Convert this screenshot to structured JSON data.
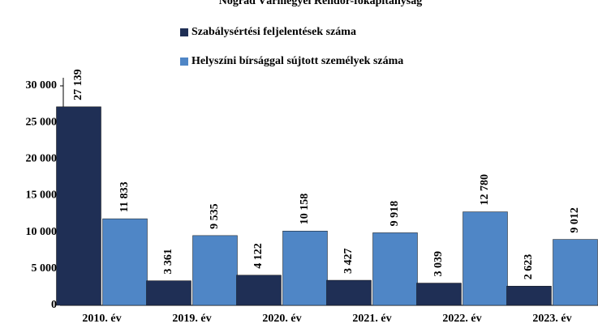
{
  "chart_data": {
    "type": "bar",
    "title": "Nógrád Vármegyei Rendőr-főkapitányság",
    "categories": [
      "2010. év",
      "2019. év",
      "2020. év",
      "2021. év",
      "2022. év",
      "2023. év"
    ],
    "series": [
      {
        "name": "Szabálysértési feljelentések száma",
        "color": "#1f2f55",
        "values": [
          27139,
          3361,
          4122,
          3427,
          3039,
          2623
        ],
        "value_labels": [
          "27 139",
          "3 361",
          "4 122",
          "3 427",
          "3 039",
          "2 623"
        ]
      },
      {
        "name": "Helyszíni bírsággal sújtott személyek száma",
        "color": "#4f86c6",
        "values": [
          11833,
          9535,
          10158,
          9918,
          12780,
          9012
        ],
        "value_labels": [
          "11 833",
          "9 535",
          "10 158",
          "9 918",
          "12 780",
          "9 012"
        ]
      }
    ],
    "ylim": [
      0,
      30000
    ],
    "yticks": [
      0,
      {
        "value": 5000,
        "label": "5 000"
      },
      {
        "value": 10000,
        "label": "10 000"
      },
      {
        "value": 15000,
        "label": "15 000"
      },
      {
        "value": 20000,
        "label": "20 000"
      },
      {
        "value": 25000,
        "label": "25 000"
      },
      {
        "value": 30000,
        "label": "30 000"
      }
    ],
    "grid": false
  }
}
